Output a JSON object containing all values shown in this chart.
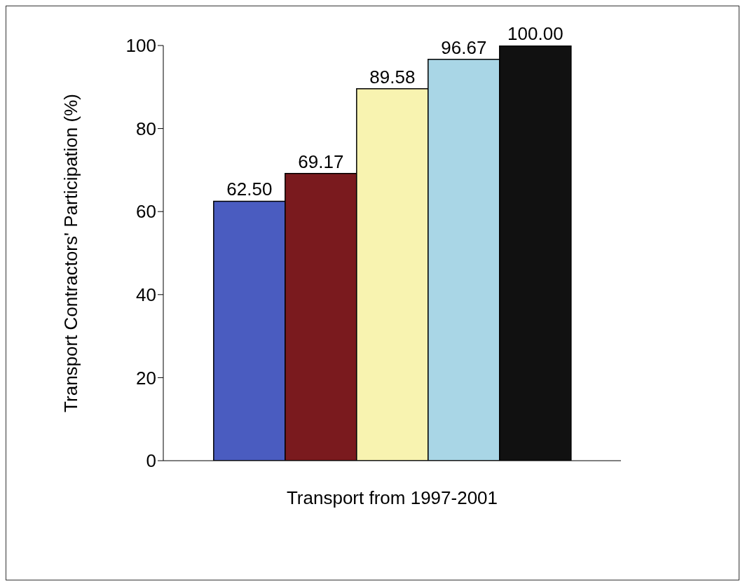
{
  "chart_data": {
    "type": "bar",
    "xlabel": "Transport from 1997-2001",
    "ylabel": "Transport Contractors' Participation (%)",
    "categories": [
      null
    ],
    "series": [
      {
        "color": "#4a5cc0",
        "values": [
          62.5
        ],
        "value_labels": [
          "62.50"
        ]
      },
      {
        "color": "#7a1a1e",
        "values": [
          69.17
        ],
        "value_labels": [
          "69.17"
        ]
      },
      {
        "color": "#f8f3b0",
        "values": [
          89.58
        ],
        "value_labels": [
          "89.58"
        ]
      },
      {
        "color": "#a9d6e6",
        "values": [
          96.67
        ],
        "value_labels": [
          "96.67"
        ]
      },
      {
        "color": "#111111",
        "values": [
          100
        ],
        "value_labels": [
          "100.00"
        ]
      }
    ],
    "ylim": [
      0,
      100
    ],
    "yticks": [
      0,
      20,
      40,
      60,
      80,
      100
    ]
  }
}
